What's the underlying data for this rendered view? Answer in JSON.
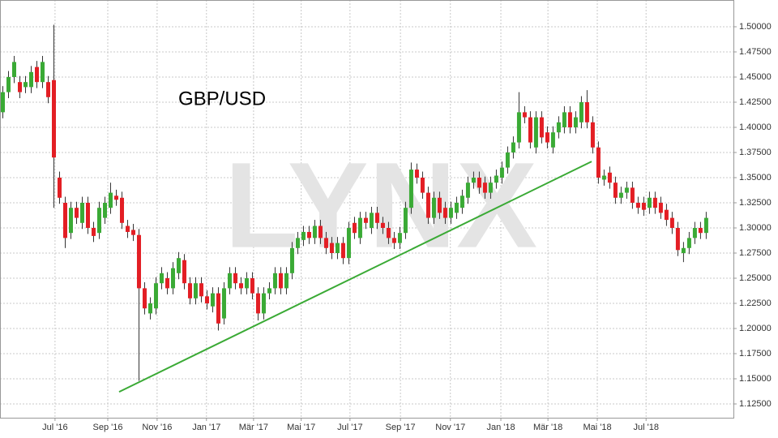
{
  "chart_data": {
    "type": "candlestick",
    "title": "GBP/USD",
    "watermark": "LYNX",
    "up_color": "#3aaa35",
    "down_color": "#e31e24",
    "grid": true,
    "open": [
      1.415,
      1.435,
      1.45,
      1.445,
      1.44,
      1.44,
      1.46,
      1.445,
      1.445,
      1.447,
      1.35,
      1.325,
      1.295,
      1.32,
      1.305,
      1.325,
      1.3,
      1.295,
      1.31,
      1.32,
      1.332,
      1.33,
      1.302,
      1.298,
      1.293,
      1.24,
      1.215,
      1.22,
      1.245,
      1.25,
      1.24,
      1.255,
      1.268,
      1.245,
      1.23,
      1.245,
      1.232,
      1.222,
      1.235,
      1.21,
      1.24,
      1.255,
      1.245,
      1.24,
      1.25,
      1.235,
      1.215,
      1.235,
      1.24,
      1.255,
      1.24,
      1.255,
      1.28,
      1.288,
      1.296,
      1.29,
      1.302,
      1.29,
      1.285,
      1.275,
      1.285,
      1.27,
      1.305,
      1.29,
      1.31,
      1.3,
      1.315,
      1.305,
      1.3,
      1.29,
      1.285,
      1.295,
      1.32,
      1.358,
      1.35,
      1.335,
      1.31,
      1.33,
      1.32,
      1.31,
      1.315,
      1.32,
      1.33,
      1.345,
      1.35,
      1.345,
      1.335,
      1.345,
      1.35,
      1.36,
      1.375,
      1.385,
      1.415,
      1.41,
      1.38,
      1.41,
      1.395,
      1.38,
      1.395,
      1.4,
      1.415,
      1.4,
      1.405,
      1.425,
      1.405,
      1.38,
      1.348,
      1.355,
      1.345,
      1.33,
      1.335,
      1.34,
      1.325,
      1.325,
      1.32,
      1.33,
      1.325,
      1.318,
      1.31,
      1.3,
      1.275,
      1.28,
      1.29,
      1.3,
      1.295
    ],
    "high": [
      1.441,
      1.456,
      1.471,
      1.451,
      1.451,
      1.461,
      1.466,
      1.471,
      1.451,
      1.502,
      1.356,
      1.331,
      1.326,
      1.326,
      1.331,
      1.331,
      1.306,
      1.326,
      1.331,
      1.345,
      1.338,
      1.336,
      1.308,
      1.304,
      1.299,
      1.246,
      1.231,
      1.251,
      1.261,
      1.256,
      1.266,
      1.276,
      1.274,
      1.251,
      1.251,
      1.251,
      1.238,
      1.241,
      1.241,
      1.246,
      1.261,
      1.261,
      1.251,
      1.256,
      1.256,
      1.241,
      1.241,
      1.246,
      1.261,
      1.261,
      1.261,
      1.286,
      1.296,
      1.302,
      1.302,
      1.308,
      1.308,
      1.296,
      1.291,
      1.291,
      1.291,
      1.306,
      1.311,
      1.316,
      1.316,
      1.321,
      1.321,
      1.311,
      1.306,
      1.296,
      1.301,
      1.326,
      1.365,
      1.364,
      1.356,
      1.341,
      1.336,
      1.336,
      1.326,
      1.326,
      1.331,
      1.338,
      1.351,
      1.356,
      1.356,
      1.351,
      1.351,
      1.358,
      1.366,
      1.381,
      1.391,
      1.435,
      1.421,
      1.416,
      1.416,
      1.416,
      1.401,
      1.401,
      1.411,
      1.421,
      1.421,
      1.416,
      1.431,
      1.437,
      1.411,
      1.386,
      1.358,
      1.361,
      1.351,
      1.341,
      1.346,
      1.346,
      1.331,
      1.331,
      1.336,
      1.336,
      1.331,
      1.324,
      1.316,
      1.306,
      1.286,
      1.296,
      1.306,
      1.306,
      1.316
    ],
    "low": [
      1.409,
      1.429,
      1.444,
      1.429,
      1.434,
      1.434,
      1.439,
      1.439,
      1.424,
      1.32,
      1.324,
      1.28,
      1.289,
      1.304,
      1.299,
      1.294,
      1.286,
      1.289,
      1.304,
      1.314,
      1.322,
      1.299,
      1.29,
      1.287,
      1.148,
      1.214,
      1.209,
      1.214,
      1.239,
      1.234,
      1.234,
      1.249,
      1.239,
      1.224,
      1.224,
      1.226,
      1.219,
      1.216,
      1.198,
      1.204,
      1.234,
      1.239,
      1.234,
      1.234,
      1.229,
      1.208,
      1.209,
      1.229,
      1.234,
      1.234,
      1.234,
      1.249,
      1.274,
      1.282,
      1.284,
      1.284,
      1.284,
      1.274,
      1.269,
      1.269,
      1.264,
      1.264,
      1.289,
      1.284,
      1.299,
      1.294,
      1.299,
      1.294,
      1.284,
      1.279,
      1.279,
      1.289,
      1.314,
      1.344,
      1.329,
      1.304,
      1.304,
      1.309,
      1.304,
      1.304,
      1.309,
      1.314,
      1.324,
      1.339,
      1.334,
      1.329,
      1.329,
      1.339,
      1.344,
      1.354,
      1.369,
      1.379,
      1.404,
      1.379,
      1.374,
      1.384,
      1.379,
      1.374,
      1.389,
      1.394,
      1.394,
      1.394,
      1.399,
      1.399,
      1.374,
      1.344,
      1.342,
      1.339,
      1.324,
      1.324,
      1.329,
      1.319,
      1.314,
      1.312,
      1.314,
      1.314,
      1.309,
      1.302,
      1.294,
      1.272,
      1.266,
      1.274,
      1.284,
      1.289,
      1.289
    ],
    "close": [
      1.435,
      1.45,
      1.465,
      1.435,
      1.445,
      1.455,
      1.445,
      1.465,
      1.43,
      1.37,
      1.33,
      1.29,
      1.32,
      1.31,
      1.325,
      1.3,
      1.292,
      1.32,
      1.325,
      1.335,
      1.328,
      1.305,
      1.296,
      1.293,
      1.24,
      1.22,
      1.225,
      1.245,
      1.255,
      1.24,
      1.26,
      1.27,
      1.245,
      1.23,
      1.245,
      1.232,
      1.225,
      1.235,
      1.205,
      1.24,
      1.255,
      1.245,
      1.24,
      1.25,
      1.235,
      1.215,
      1.235,
      1.24,
      1.255,
      1.24,
      1.255,
      1.28,
      1.29,
      1.296,
      1.29,
      1.302,
      1.29,
      1.28,
      1.275,
      1.285,
      1.27,
      1.3,
      1.295,
      1.31,
      1.305,
      1.315,
      1.305,
      1.3,
      1.29,
      1.285,
      1.295,
      1.32,
      1.358,
      1.35,
      1.335,
      1.31,
      1.33,
      1.315,
      1.31,
      1.32,
      1.325,
      1.332,
      1.345,
      1.35,
      1.34,
      1.335,
      1.345,
      1.352,
      1.36,
      1.375,
      1.385,
      1.415,
      1.41,
      1.385,
      1.41,
      1.39,
      1.385,
      1.395,
      1.405,
      1.415,
      1.4,
      1.41,
      1.425,
      1.405,
      1.38,
      1.35,
      1.352,
      1.345,
      1.33,
      1.335,
      1.34,
      1.325,
      1.32,
      1.318,
      1.33,
      1.32,
      1.315,
      1.308,
      1.3,
      1.278,
      1.28,
      1.29,
      1.3,
      1.295,
      1.31
    ],
    "xlim": [
      -0.5,
      128.8
    ],
    "xticks": [
      {
        "value": 9.2,
        "label": "Jul '16"
      },
      {
        "value": 18.5,
        "label": "Sep '16"
      },
      {
        "value": 27.2,
        "label": "Nov '16"
      },
      {
        "value": 35.9,
        "label": "Jan '17"
      },
      {
        "value": 44.2,
        "label": "Mär '17"
      },
      {
        "value": 52.6,
        "label": "Mai '17"
      },
      {
        "value": 61.2,
        "label": "Jul '17"
      },
      {
        "value": 70.1,
        "label": "Sep '17"
      },
      {
        "value": 78.9,
        "label": "Nov '17"
      },
      {
        "value": 87.8,
        "label": "Jan '18"
      },
      {
        "value": 96.1,
        "label": "Mär '18"
      },
      {
        "value": 104.8,
        "label": "Mai '18"
      },
      {
        "value": 113.4,
        "label": "Jul '18"
      }
    ],
    "ylim": [
      1.1113,
      1.5266
    ],
    "yticks": [
      {
        "value": 1.125,
        "label": "1.12500"
      },
      {
        "value": 1.15,
        "label": "1.15000"
      },
      {
        "value": 1.175,
        "label": "1.17500"
      },
      {
        "value": 1.2,
        "label": "1.20000"
      },
      {
        "value": 1.225,
        "label": "1.22500"
      },
      {
        "value": 1.25,
        "label": "1.25000"
      },
      {
        "value": 1.275,
        "label": "1.27500"
      },
      {
        "value": 1.3,
        "label": "1.30000"
      },
      {
        "value": 1.325,
        "label": "1.32500"
      },
      {
        "value": 1.35,
        "label": "1.35000"
      },
      {
        "value": 1.375,
        "label": "1.37500"
      },
      {
        "value": 1.4,
        "label": "1.40000"
      },
      {
        "value": 1.425,
        "label": "1.42500"
      },
      {
        "value": 1.45,
        "label": "1.45000"
      },
      {
        "value": 1.475,
        "label": "1.47500"
      },
      {
        "value": 1.5,
        "label": "1.50000"
      }
    ],
    "trendline": {
      "x": [
        20.5,
        103.8
      ],
      "y": [
        1.137,
        1.366
      ],
      "color": "#3aaa35"
    }
  }
}
